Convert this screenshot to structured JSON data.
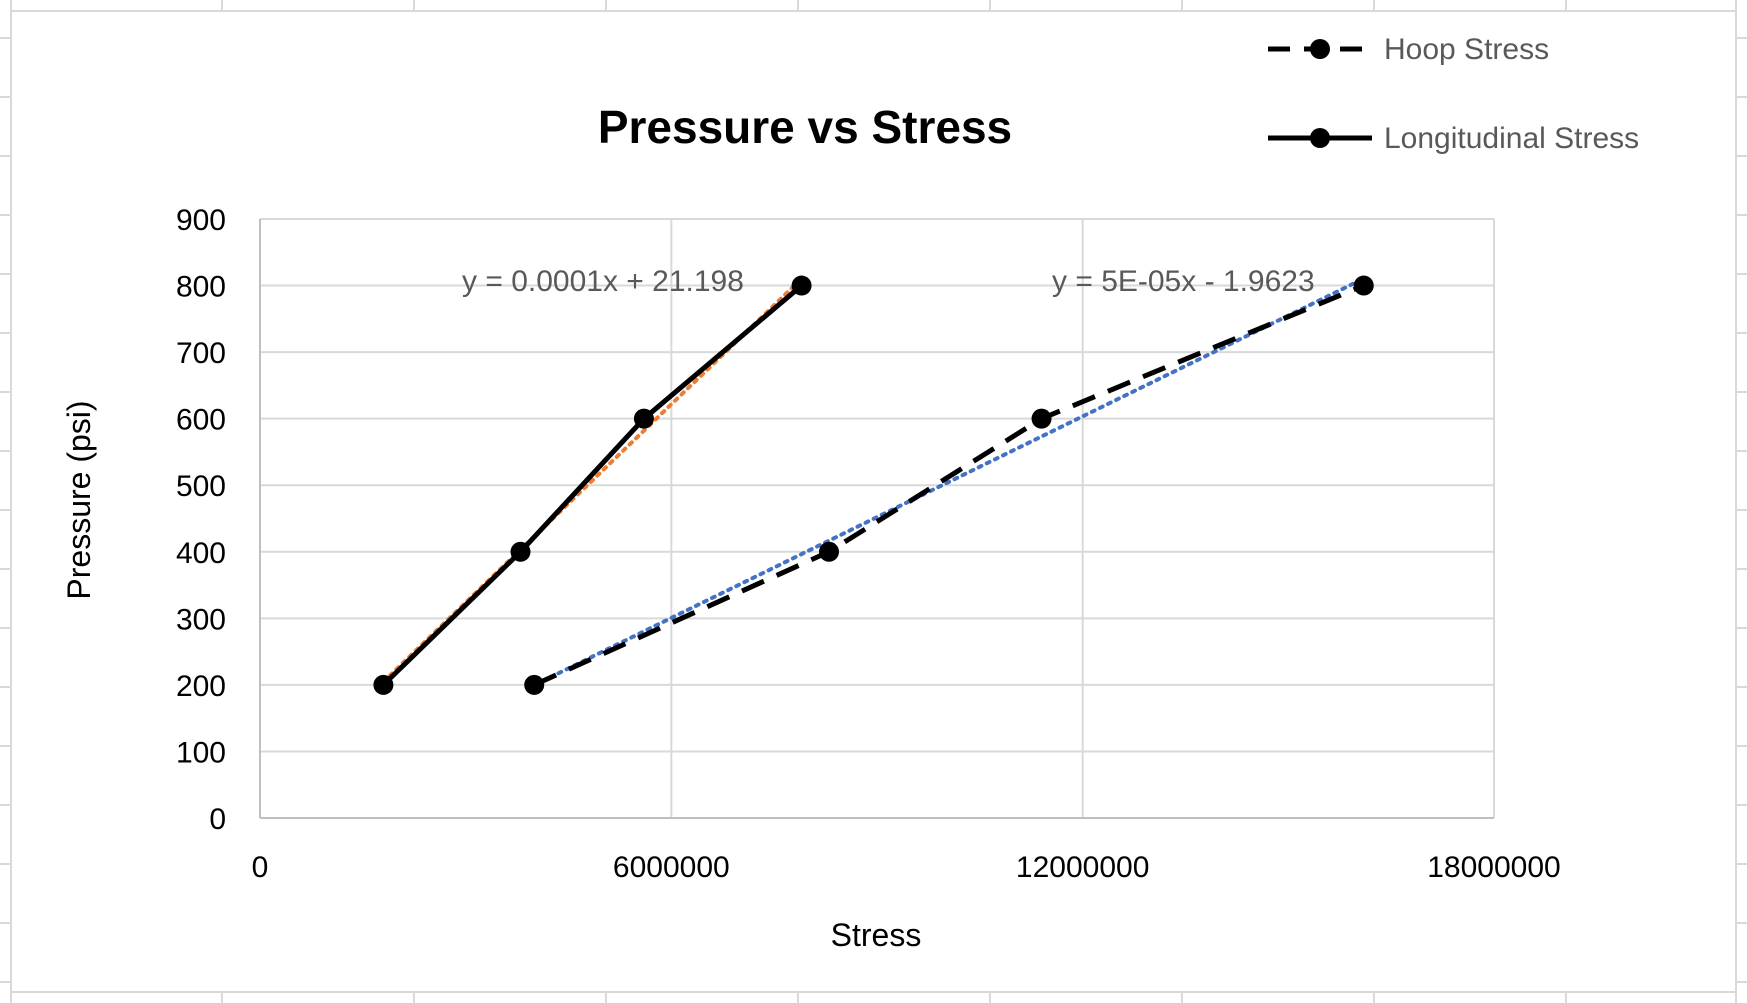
{
  "chart_data": {
    "type": "scatter",
    "title": "Pressure vs Stress",
    "xlabel": "Stress",
    "ylabel": "Pressure (psi)",
    "xlim": [
      0,
      18000000
    ],
    "ylim": [
      0,
      900
    ],
    "x_ticks": [
      "0",
      "6000000",
      "12000000",
      "18000000"
    ],
    "y_ticks": [
      "0",
      "100",
      "200",
      "300",
      "400",
      "500",
      "600",
      "700",
      "800",
      "900"
    ],
    "grid": true,
    "legend_position": "top-right",
    "series": [
      {
        "name": "Hoop Stress",
        "line_style": "dashed",
        "color": "#000000",
        "points": [
          {
            "x": 4000000,
            "y": 200
          },
          {
            "x": 8300000,
            "y": 400
          },
          {
            "x": 11400000,
            "y": 600
          },
          {
            "x": 16100000,
            "y": 800
          }
        ],
        "trendline": {
          "equation": "y = 5E-05x - 1.9623",
          "slope": 5e-05,
          "intercept": -1.9623,
          "color": "#4472C4",
          "style": "dotted"
        }
      },
      {
        "name": "Longitudinal Stress",
        "line_style": "solid",
        "color": "#000000",
        "points": [
          {
            "x": 1800000,
            "y": 200
          },
          {
            "x": 3800000,
            "y": 400
          },
          {
            "x": 5600000,
            "y": 600
          },
          {
            "x": 7900000,
            "y": 800
          }
        ],
        "trendline": {
          "equation": "y = 0.0001x + 21.198",
          "slope": 0.0001,
          "intercept": 21.198,
          "color": "#ED7D31",
          "style": "dotted"
        }
      }
    ]
  }
}
